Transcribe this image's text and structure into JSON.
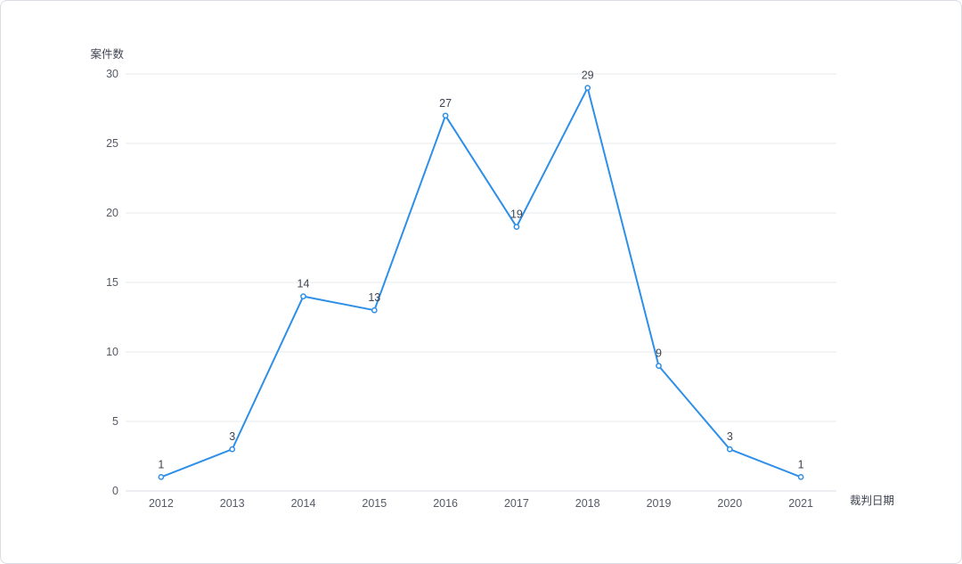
{
  "chart_data": {
    "type": "line",
    "title": "",
    "xlabel": "裁判日期",
    "ylabel": "案件数",
    "categories": [
      "2012",
      "2013",
      "2014",
      "2015",
      "2016",
      "2017",
      "2018",
      "2019",
      "2020",
      "2021"
    ],
    "series": [
      {
        "values": [
          1,
          3,
          14,
          13,
          27,
          19,
          29,
          9,
          3,
          1
        ],
        "color": "#2d8fe8"
      }
    ],
    "ylim": [
      0,
      30
    ],
    "yticks": [
      0,
      5,
      10,
      15,
      20,
      25,
      30
    ],
    "grid": true,
    "legend": "none",
    "data_labels": true
  }
}
